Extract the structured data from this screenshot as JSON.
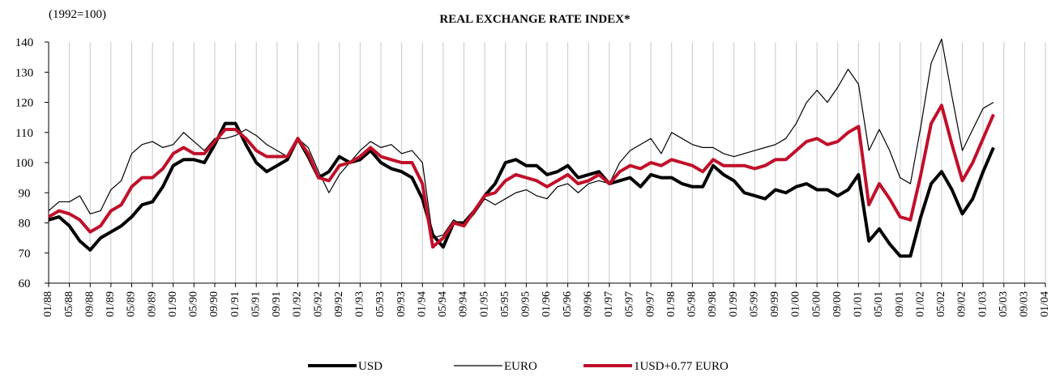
{
  "chart_data": {
    "type": "line",
    "title": "REAL EXCHANGE RATE INDEX*",
    "subtitle": "(1992=100)",
    "categories": [
      "01/88",
      null,
      "05/88",
      null,
      "09/88",
      null,
      "01/89",
      null,
      "05/89",
      null,
      "09/89",
      null,
      "01/90",
      null,
      "05/90",
      null,
      "09/90",
      null,
      "01/91",
      null,
      "05/91",
      null,
      "09/91",
      null,
      "01/92",
      null,
      "05/92",
      null,
      "09/92",
      null,
      "01/93",
      null,
      "05/93",
      null,
      "09/93",
      null,
      "01/94",
      null,
      "05/94",
      null,
      "09/94",
      null,
      "01/95",
      null,
      "05/95",
      null,
      "09/95",
      null,
      "01/96",
      null,
      "05/96",
      null,
      "09/96",
      null,
      "01/97",
      null,
      "05/97",
      null,
      "09/97",
      null,
      "01/98",
      null,
      "05/98",
      null,
      "09/98",
      null,
      "01/99",
      null,
      "05/99",
      null,
      "09/99",
      null,
      "01/00",
      null,
      "05/00",
      null,
      "09/00",
      null,
      "01/01",
      null,
      "05/01",
      null,
      "09/01",
      null,
      "01/02",
      null,
      "05/02",
      null,
      "09/02",
      null,
      "01/03",
      null,
      "05/03",
      null,
      "09/03",
      null,
      "01/04"
    ],
    "series": [
      {
        "name": "USD",
        "color": "#000000",
        "width": 4,
        "values": [
          81,
          82,
          79,
          74,
          71,
          75,
          77,
          79,
          82,
          86,
          87,
          92,
          99,
          101,
          101,
          100,
          106,
          113,
          113,
          106,
          100,
          97,
          99,
          101,
          108,
          102,
          95,
          97,
          102,
          100,
          101,
          104,
          100,
          98,
          97,
          95,
          88,
          76,
          72,
          80,
          80,
          84,
          89,
          93,
          100,
          101,
          99,
          99,
          96,
          97,
          99,
          95,
          96,
          97,
          93,
          94,
          95,
          92,
          96,
          95,
          95,
          93,
          92,
          92,
          99,
          96,
          94,
          90,
          89,
          88,
          91,
          90,
          92,
          93,
          91,
          91,
          89,
          91,
          96,
          74,
          78,
          73,
          69,
          69,
          82,
          93,
          97,
          91,
          83,
          88,
          97,
          105,
          null,
          null,
          null,
          null,
          null
        ]
      },
      {
        "name": "EURO",
        "color": "#000000",
        "width": 1.2,
        "values": [
          84,
          87,
          87,
          89,
          83,
          84,
          91,
          94,
          103,
          106,
          107,
          105,
          106,
          110,
          107,
          104,
          108,
          108,
          109,
          111,
          109,
          106,
          104,
          102,
          108,
          105,
          97,
          90,
          96,
          100,
          104,
          107,
          105,
          106,
          103,
          104,
          100,
          75,
          76,
          81,
          79,
          83,
          88,
          86,
          88,
          90,
          91,
          89,
          88,
          92,
          93,
          90,
          93,
          94,
          93,
          100,
          104,
          106,
          108,
          103,
          110,
          108,
          106,
          105,
          105,
          103,
          102,
          103,
          104,
          105,
          106,
          108,
          113,
          120,
          124,
          120,
          125,
          131,
          126,
          104,
          111,
          104,
          95,
          93,
          112,
          133,
          141,
          122,
          104,
          111,
          118,
          120,
          null,
          null,
          null,
          null,
          null
        ]
      },
      {
        "name": "1USD+0.77 EURO",
        "color": "#c0102a",
        "width": 4,
        "values": [
          82,
          84,
          83,
          81,
          77,
          79,
          84,
          86,
          92,
          95,
          95,
          98,
          103,
          105,
          103,
          103,
          107,
          111,
          111,
          108,
          104,
          102,
          102,
          102,
          108,
          103,
          95,
          94,
          99,
          100,
          102,
          105,
          102,
          101,
          100,
          100,
          93,
          72,
          75,
          80,
          79,
          84,
          89,
          90,
          94,
          96,
          95,
          94,
          92,
          94,
          96,
          93,
          94,
          96,
          93,
          97,
          99,
          98,
          100,
          99,
          101,
          100,
          99,
          97,
          101,
          99,
          99,
          99,
          98,
          99,
          101,
          101,
          104,
          107,
          108,
          106,
          107,
          110,
          112,
          86,
          93,
          88,
          82,
          81,
          96,
          113,
          119,
          106,
          94,
          100,
          108,
          116,
          null,
          null,
          null,
          null,
          null
        ]
      }
    ],
    "ylim": [
      60,
      140
    ],
    "yticks": [
      60,
      70,
      80,
      90,
      100,
      110,
      120,
      130,
      140
    ],
    "xgrid": true,
    "legend": "bottom"
  }
}
